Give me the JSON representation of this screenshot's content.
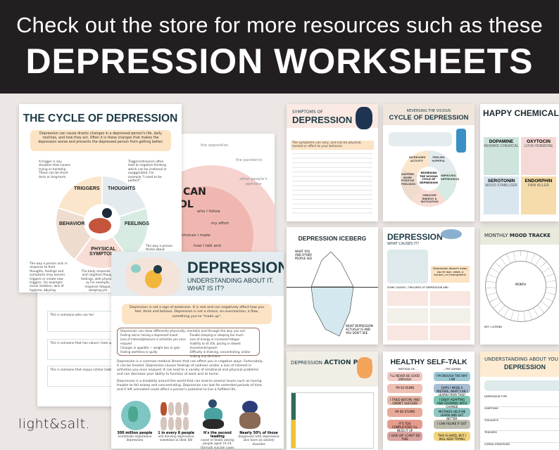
{
  "banner": {
    "line1": "Check out the store for more resources such as these",
    "line2": "DEPRESSION WORKSHEETS"
  },
  "brand": {
    "logo": "light&salt."
  },
  "colors": {
    "banner": "#231f20",
    "background": "#ece7e4",
    "heading": "#1d3b45",
    "peach": "#fbe3c4"
  },
  "cycle": {
    "title": "THE CYCLE OF DEPRESSION",
    "intro": "Depression can cause drastic changes in a depressed person's life, daily routines, and how they act. Often it is these changes that makes the depression worse and prevents the depressed person from getting better.",
    "trigger_note": "A trigger is any situation that causes trying or hardship. These can be short-term or long-term.",
    "thoughts_note": "Triggers/stressors often lead to negative thinking which can be irrational or exaggerated. For example \"I need to be perfect\".",
    "segments": [
      "TRIGGERS",
      "THOUGHTS",
      "FEELINGS",
      "PHYSICAL SYMPTOMS",
      "BEHAVIOR"
    ],
    "behavior_note": "The way a person acts in response to their thoughts, feelings and symptoms may worsen triggers or create new triggers. For example: social isolation, lack of hygiene, abusing substances/drugs, neglecting daily tasks, etc.",
    "feelings_note": "The way a person thinks about something has a",
    "physical_note": "The body responds to and negative though feelings, with physical sy For example, response fatigue, sleeping pro headaches, nausea"
  },
  "control": {
    "title_1": "CAN",
    "title_2": "OL",
    "outer": [
      "the opposition",
      "the pandemic",
      "other people's opinions"
    ],
    "inner": [
      "who I follow",
      "my effort",
      "choices I make",
      "how I talk and"
    ]
  },
  "support": {
    "rows": [
      "This is someone who can hel",
      "This is someone that has values I look up",
      "This is someone that enjoys similar hobb"
    ]
  },
  "understanding": {
    "title": "DEPRESSION",
    "subtitle": "UNDERSTANDING ABOUT IT. WHAT IS IT?",
    "callout": "Depression is not a sign of weakness. It is real and can negatively affect how you feel, think and behave. Depression is not a choice, an overreaction, a flaw, something you've \"made up\".",
    "list_intro": "Depression can show differently physically, mentally and through the way you act:",
    "list": [
      "Feeling sad or having a depressed mood",
      "Loss of interest/pleasure in activities you once enjoyed",
      "Changes in appetite — weight loss or gain",
      "Feeling worthless or guilty",
      "Trouble sleeping or sleeping too much",
      "Loss of energy or increased fatigue",
      "Inability to sit still, pacing or slowed movements/speech",
      "Difficulty in thinking, concentrating, and/or making any decisions"
    ],
    "para1": "Depression is a common medical illness that can affect you in negative ways. Fortunately, it can be treated. Depression causes feelings of sadness and/or a loss of interest in activities you once enjoyed. It can lead to a variety of emotional and physical problems and can decrease your ability to function at work and at home.",
    "para2": "Depression is a disability around the world that can lead to several issues such as having trouble to fall asleep and concentrating. Depression can last for extended periods of time and if left untreated could affect a person's potential to live a fulfilled life.",
    "stats": [
      {
        "head": "300 million people",
        "body": "worldwide experience depression"
      },
      {
        "head": "1 in every 8 people",
        "body": "will develop depression sometime in their life"
      },
      {
        "head": "It's the second leading",
        "body": "cause of death among people aged 10-34, through suicide cases"
      },
      {
        "head": "Nearly 50% of those",
        "body": "diagnosed with depression also have an anxiety disorder"
      }
    ]
  },
  "thumbs": {
    "symptoms": {
      "pre": "SYMPTOMS OF",
      "title": "DEPRESSION",
      "note": "The symptoms can vary, and can be physical, mental or affect to your behavior"
    },
    "reversing": {
      "pre": "REVERSING THE VICIOUS",
      "title": "CYCLE OF DEPRESSION",
      "center": "REVERSING THE VICIOUS CYCLE OF DEPRESSION",
      "segments": [
        "INCREASED ACTIVITY",
        "FEELING HOPEFUL",
        "IMPROVED DEPRESSION",
        "GREATER ENERGY & MOTIVATION",
        "HAPPIER MORE POSITIVE FEELINGS"
      ]
    },
    "chemicals": {
      "title": "HAPPY CHEMICAL",
      "boxes": [
        {
          "name": "DOPAMINE",
          "sub": "REWARD CHEMICAL"
        },
        {
          "name": "OXYTOCIN",
          "sub": "LOVE HORMONE"
        },
        {
          "name": "SEROTONIN",
          "sub": "MOOD STABILIZER"
        },
        {
          "name": "ENDORPHIN",
          "sub": "PAIN KILLER"
        }
      ]
    },
    "iceberg": {
      "title": "DEPRESSION ICEBERG",
      "top": "WHAT YOU AND OTHER PEOPLE SEE",
      "bottom": "WHAT DEPRESSION ACTUALLY IS AND YOU DON'T SEE"
    },
    "causes": {
      "title": "DEPRESSION",
      "sub": "WHAT CAUSES IT?",
      "note": "Depression doesn't mean you're lazy, weak, a burden, or incompetent.",
      "list_title": "SOME CAUSES / TRIGGERS OF DEPRESSION ARE:"
    },
    "mood": {
      "pre": "MONTHLY",
      "title": "MOOD TRACKE",
      "month": "MONTH",
      "legend": "KEY / LEGEND"
    },
    "action": {
      "pre": "DEPRESSION",
      "title": "ACTION PLAN"
    },
    "selftalk": {
      "title": "HEALTHY SELF-TALK",
      "col1": "INSTEAD OF...",
      "col2": "...TRY SAYING",
      "instead": [
        "I'LL NEVER BE GOOD ENOUGH",
        "I'M SO DUMB",
        "I TRIED BEFORE AND I DIDN'T SUCCEED",
        "I'M SO STUPID",
        "IT'S TOO COMPLICATED I'LL MESS IT UP",
        "I GIVE UP! I CAN'T DO THIS"
      ],
      "try": [
        "I'M ENOUGH THE WAY I AM",
        "OOPS I MADE A MISTAKE, WHAT CAN I LEARN FROM THIS?",
        "I ENJOY ADAPTING AND GROWING WITH CHANGE",
        "MISTAKES HELP ME LEARN AND GET BETTER",
        "I CAN FIGURE IT OUT",
        "THIS IS HARD, BUT I WILL KEEP TRYING"
      ]
    },
    "yourdep": {
      "pre": "UNDERSTANDING ABOUT YOU",
      "title": "DEPRESSION",
      "fields": [
        "DEPRESSION TYPE",
        "SYMPTOMS",
        "THOUGHTS",
        "TRIGGERS",
        "COPING STRATEGIES"
      ]
    }
  }
}
